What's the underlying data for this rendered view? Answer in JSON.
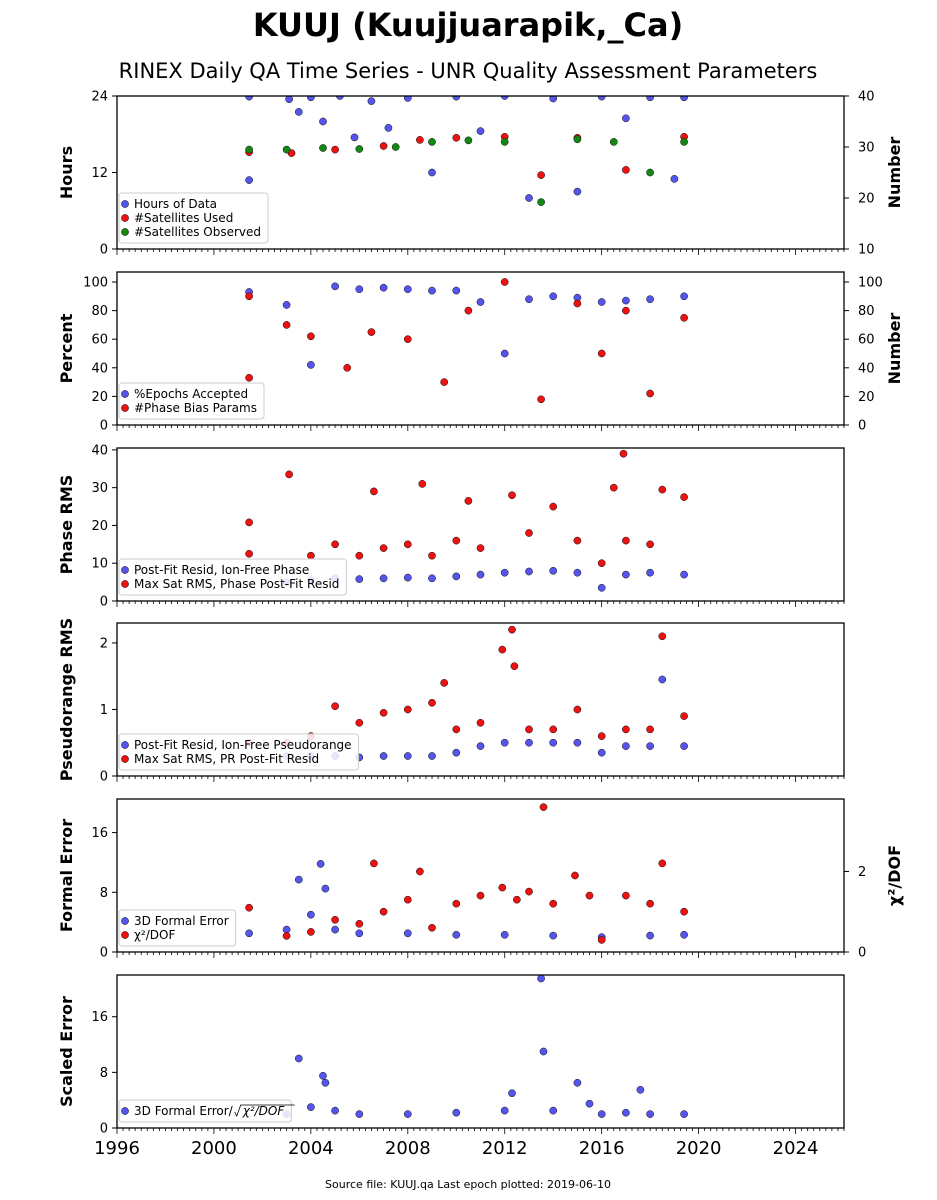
{
  "title": "KUUJ (Kuujjuarapik,_Ca)",
  "subtitle": "RINEX Daily QA Time Series - UNR Quality Assessment Parameters",
  "source_note": "Source file: KUUJ.qa Last epoch plotted: 2019-06-10",
  "colors": {
    "blue": "#5555ee",
    "red": "#ee1111",
    "green": "#118811",
    "edge": "#111111"
  },
  "chart_data": [
    {
      "type": "scatter",
      "ylabel": "Hours",
      "ylabel_right": "Number",
      "ylim": [
        0,
        24
      ],
      "ylim_right": [
        10,
        40
      ],
      "yticks": [
        0,
        12,
        24
      ],
      "yticks_right": [
        10,
        20,
        30,
        40
      ],
      "legend_position": "lower-left",
      "series": [
        {
          "name": "Hours of Data",
          "color": "blue",
          "axis": "left",
          "x": [
            2001.45,
            2001.45,
            2003.1,
            2003.5,
            2004.0,
            2004.5,
            2005.2,
            2005.8,
            2006.5,
            2007.2,
            2008.0,
            2009.0,
            2010.0,
            2011.0,
            2012.0,
            2013.0,
            2014.0,
            2015.0,
            2016.0,
            2017.0,
            2018.0,
            2019.0,
            2019.4
          ],
          "y": [
            23.9,
            10.8,
            23.5,
            21.5,
            23.8,
            20.0,
            24.0,
            17.5,
            23.2,
            19.0,
            23.7,
            12.0,
            23.9,
            18.5,
            24.0,
            8.0,
            23.6,
            9.0,
            23.9,
            20.5,
            23.8,
            11.0,
            23.8
          ]
        },
        {
          "name": "#Satellites Used",
          "color": "red",
          "axis": "right",
          "x": [
            2001.45,
            2003.2,
            2005.0,
            2007.0,
            2008.5,
            2010.0,
            2012.0,
            2013.5,
            2015.0,
            2017.0,
            2019.4
          ],
          "y": [
            29.0,
            28.8,
            29.5,
            30.2,
            31.4,
            31.8,
            32.0,
            24.5,
            31.8,
            25.5,
            32.0
          ]
        },
        {
          "name": "#Satellites Observed",
          "color": "green",
          "axis": "right",
          "x": [
            2001.45,
            2003.0,
            2004.5,
            2006.0,
            2007.5,
            2009.0,
            2010.5,
            2012.0,
            2013.5,
            2015.0,
            2016.5,
            2018.0,
            2019.4
          ],
          "y": [
            29.5,
            29.5,
            29.8,
            29.6,
            30.0,
            31.0,
            31.3,
            31.0,
            19.2,
            31.5,
            31.0,
            25.0,
            31.0
          ]
        }
      ]
    },
    {
      "type": "scatter",
      "ylabel": "Percent",
      "ylabel_right": "Number",
      "ylim": [
        0,
        107
      ],
      "ylim_right": [
        0,
        107
      ],
      "yticks": [
        0,
        20,
        40,
        60,
        80,
        100
      ],
      "yticks_right": [
        0,
        20,
        40,
        60,
        80,
        100
      ],
      "legend_position": "lower-left",
      "series": [
        {
          "name": "%Epochs Accepted",
          "color": "blue",
          "axis": "left",
          "x": [
            2001.45,
            2003.0,
            2004.0,
            2005.0,
            2006.0,
            2007.0,
            2008.0,
            2009.0,
            2010.0,
            2011.0,
            2012.0,
            2013.0,
            2014.0,
            2015.0,
            2016.0,
            2017.0,
            2018.0,
            2019.4
          ],
          "y": [
            93.0,
            84.0,
            42.0,
            97.0,
            95.0,
            96.0,
            95.0,
            94.0,
            94.0,
            86.0,
            50.0,
            88.0,
            90.0,
            89.0,
            86.0,
            87.0,
            88.0,
            90.0
          ]
        },
        {
          "name": "#Phase Bias Params",
          "color": "red",
          "axis": "right",
          "x": [
            2001.45,
            2001.45,
            2003.0,
            2004.0,
            2005.5,
            2006.5,
            2008.0,
            2009.5,
            2010.5,
            2012.0,
            2013.5,
            2015.0,
            2016.0,
            2017.0,
            2018.0,
            2019.4
          ],
          "y": [
            90.0,
            33.0,
            70.0,
            62.0,
            40.0,
            65.0,
            60.0,
            30.0,
            80.0,
            100.0,
            18.0,
            85.0,
            50.0,
            80.0,
            22.0,
            75.0
          ]
        }
      ]
    },
    {
      "type": "scatter",
      "ylabel": "Phase RMS",
      "ylim": [
        0,
        40.5
      ],
      "yticks": [
        0,
        10,
        20,
        30,
        40
      ],
      "legend_position": "lower-left",
      "series": [
        {
          "name": "Post-Fit Resid, Ion-Free Phase",
          "color": "blue",
          "x": [
            2003.0,
            2004.0,
            2005.0,
            2006.0,
            2007.0,
            2008.0,
            2009.0,
            2010.0,
            2011.0,
            2012.0,
            2013.0,
            2014.0,
            2015.0,
            2016.0,
            2017.0,
            2018.0,
            2019.4
          ],
          "y": [
            5.0,
            5.5,
            6.0,
            5.8,
            6.0,
            6.2,
            6.0,
            6.5,
            7.0,
            7.5,
            7.8,
            8.0,
            7.5,
            3.5,
            7.0,
            7.5,
            7.0
          ]
        },
        {
          "name": "Max Sat RMS, Phase Post-Fit Resid",
          "color": "red",
          "x": [
            2001.45,
            2001.45,
            2003.1,
            2004.0,
            2005.0,
            2006.0,
            2006.6,
            2007.0,
            2008.0,
            2008.6,
            2009.0,
            2010.0,
            2010.5,
            2011.0,
            2012.3,
            2013.0,
            2014.0,
            2015.0,
            2016.0,
            2016.5,
            2016.9,
            2017.0,
            2018.0,
            2018.5,
            2019.4
          ],
          "y": [
            20.8,
            12.5,
            33.5,
            12.0,
            15.0,
            12.0,
            29.0,
            14.0,
            15.0,
            31.0,
            12.0,
            16.0,
            26.5,
            14.0,
            28.0,
            18.0,
            25.0,
            16.0,
            10.0,
            30.0,
            39.0,
            16.0,
            15.0,
            29.5,
            27.5
          ]
        }
      ]
    },
    {
      "type": "scatter",
      "ylabel": "Pseudorange RMS",
      "ylim": [
        0,
        2.3
      ],
      "yticks": [
        0,
        1,
        2
      ],
      "legend_position": "lower-left",
      "series": [
        {
          "name": "Post-Fit Resid, Ion-Free Pseudorange",
          "color": "blue",
          "x": [
            2003.0,
            2004.0,
            2005.0,
            2006.0,
            2007.0,
            2008.0,
            2009.0,
            2010.0,
            2011.0,
            2012.0,
            2013.0,
            2014.0,
            2015.0,
            2016.0,
            2017.0,
            2018.0,
            2018.5,
            2019.4
          ],
          "y": [
            0.3,
            0.3,
            0.3,
            0.28,
            0.3,
            0.3,
            0.3,
            0.35,
            0.45,
            0.5,
            0.5,
            0.5,
            0.5,
            0.35,
            0.45,
            0.45,
            1.45,
            0.45
          ]
        },
        {
          "name": "Max Sat RMS, PR Post-Fit Resid",
          "color": "red",
          "x": [
            2001.45,
            2003.0,
            2004.0,
            2005.0,
            2006.0,
            2007.0,
            2008.0,
            2009.0,
            2009.5,
            2010.0,
            2011.0,
            2011.9,
            2012.3,
            2012.4,
            2013.0,
            2014.0,
            2015.0,
            2016.0,
            2017.0,
            2018.0,
            2018.5,
            2019.4
          ],
          "y": [
            0.5,
            0.5,
            0.6,
            1.05,
            0.8,
            0.95,
            1.0,
            1.1,
            1.4,
            0.7,
            0.8,
            1.9,
            2.2,
            1.65,
            0.7,
            0.7,
            1.0,
            0.6,
            0.7,
            0.7,
            2.1,
            0.9
          ]
        }
      ]
    },
    {
      "type": "scatter",
      "ylabel": "Formal Error",
      "ylabel_right": "χ²/DOF",
      "ylim": [
        0,
        20.5
      ],
      "ylim_right": [
        0,
        3.8
      ],
      "yticks": [
        0,
        8,
        16
      ],
      "yticks_right": [
        0,
        2
      ],
      "legend_position": "lower-left",
      "series": [
        {
          "name": "3D Formal Error",
          "color": "blue",
          "axis": "left",
          "x": [
            2001.45,
            2003.0,
            2003.5,
            2004.0,
            2004.4,
            2004.6,
            2005.0,
            2006.0,
            2008.0,
            2010.0,
            2012.0,
            2014.0,
            2016.0,
            2018.0,
            2019.4
          ],
          "y": [
            2.5,
            3.0,
            9.7,
            5.0,
            11.8,
            8.5,
            3.0,
            2.5,
            2.5,
            2.3,
            2.3,
            2.2,
            2.0,
            2.2,
            2.3
          ]
        },
        {
          "name": "χ²/DOF",
          "color": "red",
          "axis": "right",
          "x": [
            2001.45,
            2003.0,
            2004.0,
            2005.0,
            2006.0,
            2006.6,
            2007.0,
            2008.0,
            2008.5,
            2009.0,
            2010.0,
            2011.0,
            2011.9,
            2012.5,
            2013.0,
            2013.6,
            2014.0,
            2014.9,
            2015.5,
            2016.0,
            2017.0,
            2018.0,
            2018.5,
            2019.4
          ],
          "y": [
            1.1,
            0.4,
            0.5,
            0.8,
            0.7,
            2.2,
            1.0,
            1.3,
            2.0,
            0.6,
            1.2,
            1.4,
            1.6,
            1.3,
            1.5,
            3.6,
            1.2,
            1.9,
            1.4,
            0.3,
            1.4,
            1.2,
            2.2,
            1.0
          ]
        }
      ]
    },
    {
      "type": "scatter",
      "ylabel": "Scaled Error",
      "ylim": [
        0,
        22
      ],
      "yticks": [
        0,
        8,
        16
      ],
      "legend_position": "lower-left",
      "series": [
        {
          "name": "3D Formal Error/",
          "name_suffix": "χ²/DOF",
          "color": "blue",
          "x": [
            2003.0,
            2003.5,
            2004.0,
            2004.5,
            2004.6,
            2005.0,
            2006.0,
            2008.0,
            2010.0,
            2012.0,
            2012.3,
            2013.5,
            2013.6,
            2014.0,
            2015.0,
            2015.5,
            2016.0,
            2017.0,
            2017.6,
            2018.0,
            2019.4
          ],
          "y": [
            2.0,
            10.0,
            3.0,
            7.5,
            6.5,
            2.5,
            2.0,
            2.0,
            2.2,
            2.5,
            5.0,
            21.5,
            11.0,
            2.5,
            6.5,
            3.5,
            2.0,
            2.2,
            5.5,
            2.0,
            2.0
          ]
        }
      ]
    }
  ],
  "x_axis": {
    "xlim": [
      1996,
      2026
    ],
    "ticks": [
      "1996",
      "2000",
      "2004",
      "2008",
      "2012",
      "2016",
      "2020",
      "2024"
    ]
  }
}
